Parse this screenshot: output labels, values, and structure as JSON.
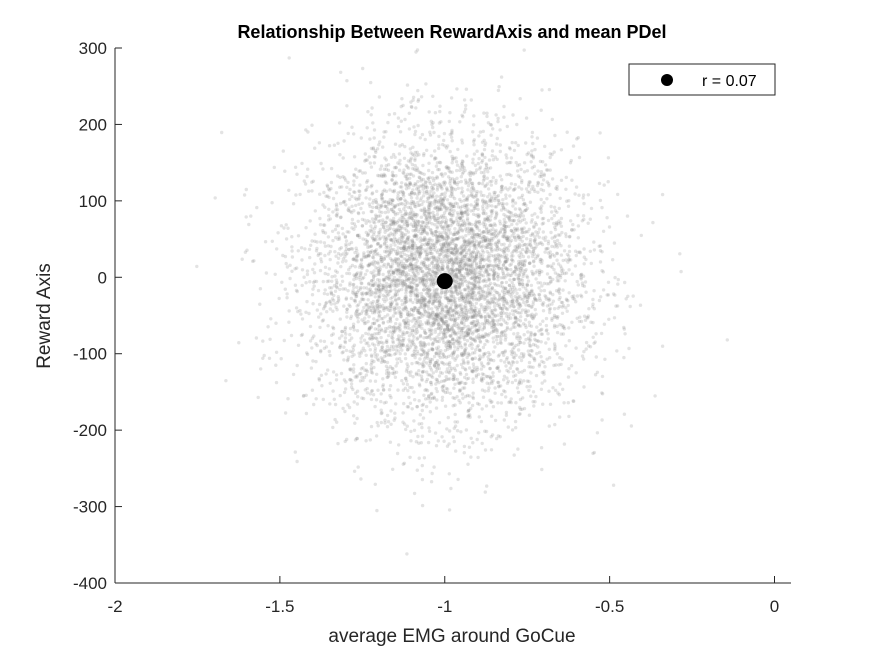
{
  "chart_data": {
    "type": "scatter",
    "title": "Relationship Between RewardAxis and mean PDel",
    "xlabel": "average EMG around GoCue",
    "ylabel": "Reward Axis",
    "xlim": [
      -2,
      0.05
    ],
    "ylim": [
      -400,
      300
    ],
    "xticks": [
      -2,
      -1.5,
      -1,
      -0.5,
      0
    ],
    "xtick_labels": [
      "-2",
      "-1.5",
      "-1",
      "-0.5",
      "0"
    ],
    "yticks": [
      -400,
      -300,
      -200,
      -100,
      0,
      100,
      200,
      300
    ],
    "ytick_labels": [
      "-400",
      "-300",
      "-200",
      "-100",
      "0",
      "100",
      "200",
      "300"
    ],
    "grid": false,
    "legend_position": "top-right",
    "series": [
      {
        "marker": "cloud",
        "color": "#7f7f7f",
        "distribution": {
          "x_mean": -1.0,
          "x_sd": 0.2,
          "y_mean": 0,
          "y_sd": 90,
          "n": 6000
        }
      },
      {
        "name": "r = 0.07",
        "marker": "filled-circle",
        "color": "#000000",
        "points": [
          {
            "x": -1.0,
            "y": -5
          }
        ]
      }
    ],
    "legend": [
      {
        "label": "r = 0.07",
        "marker": "filled-circle",
        "color": "#000000"
      }
    ]
  }
}
